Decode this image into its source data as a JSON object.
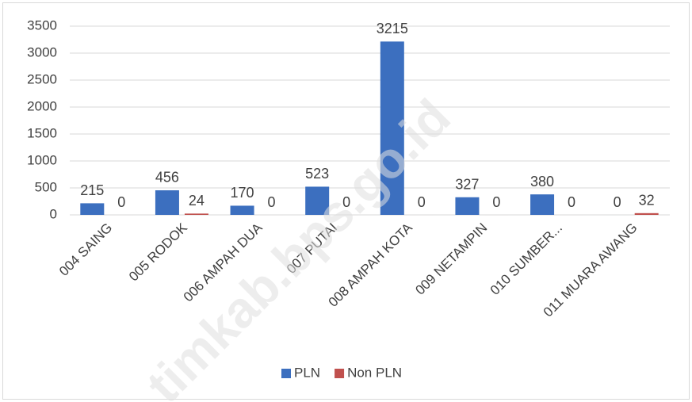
{
  "chart_data": {
    "type": "bar",
    "categories": [
      "004 SAING",
      "005 RODOK",
      "006 AMPAH DUA",
      "007 PUTAI",
      "008 AMPAH KOTA",
      "009 NETAMPIN",
      "010 SUMBER...",
      "011 MUARA AWANG"
    ],
    "series": [
      {
        "name": "PLN",
        "color": "#3c6fbf",
        "values": [
          215,
          456,
          170,
          523,
          3215,
          327,
          380,
          0
        ]
      },
      {
        "name": "Non PLN",
        "color": "#c0504d",
        "values": [
          0,
          24,
          0,
          0,
          0,
          0,
          0,
          32
        ]
      }
    ],
    "ylim": [
      0,
      3500
    ],
    "yticks": [
      0,
      500,
      1000,
      1500,
      2000,
      2500,
      3000,
      3500
    ],
    "grid": true,
    "legend": "bottom",
    "watermark": "timkab.bps.go.id"
  }
}
